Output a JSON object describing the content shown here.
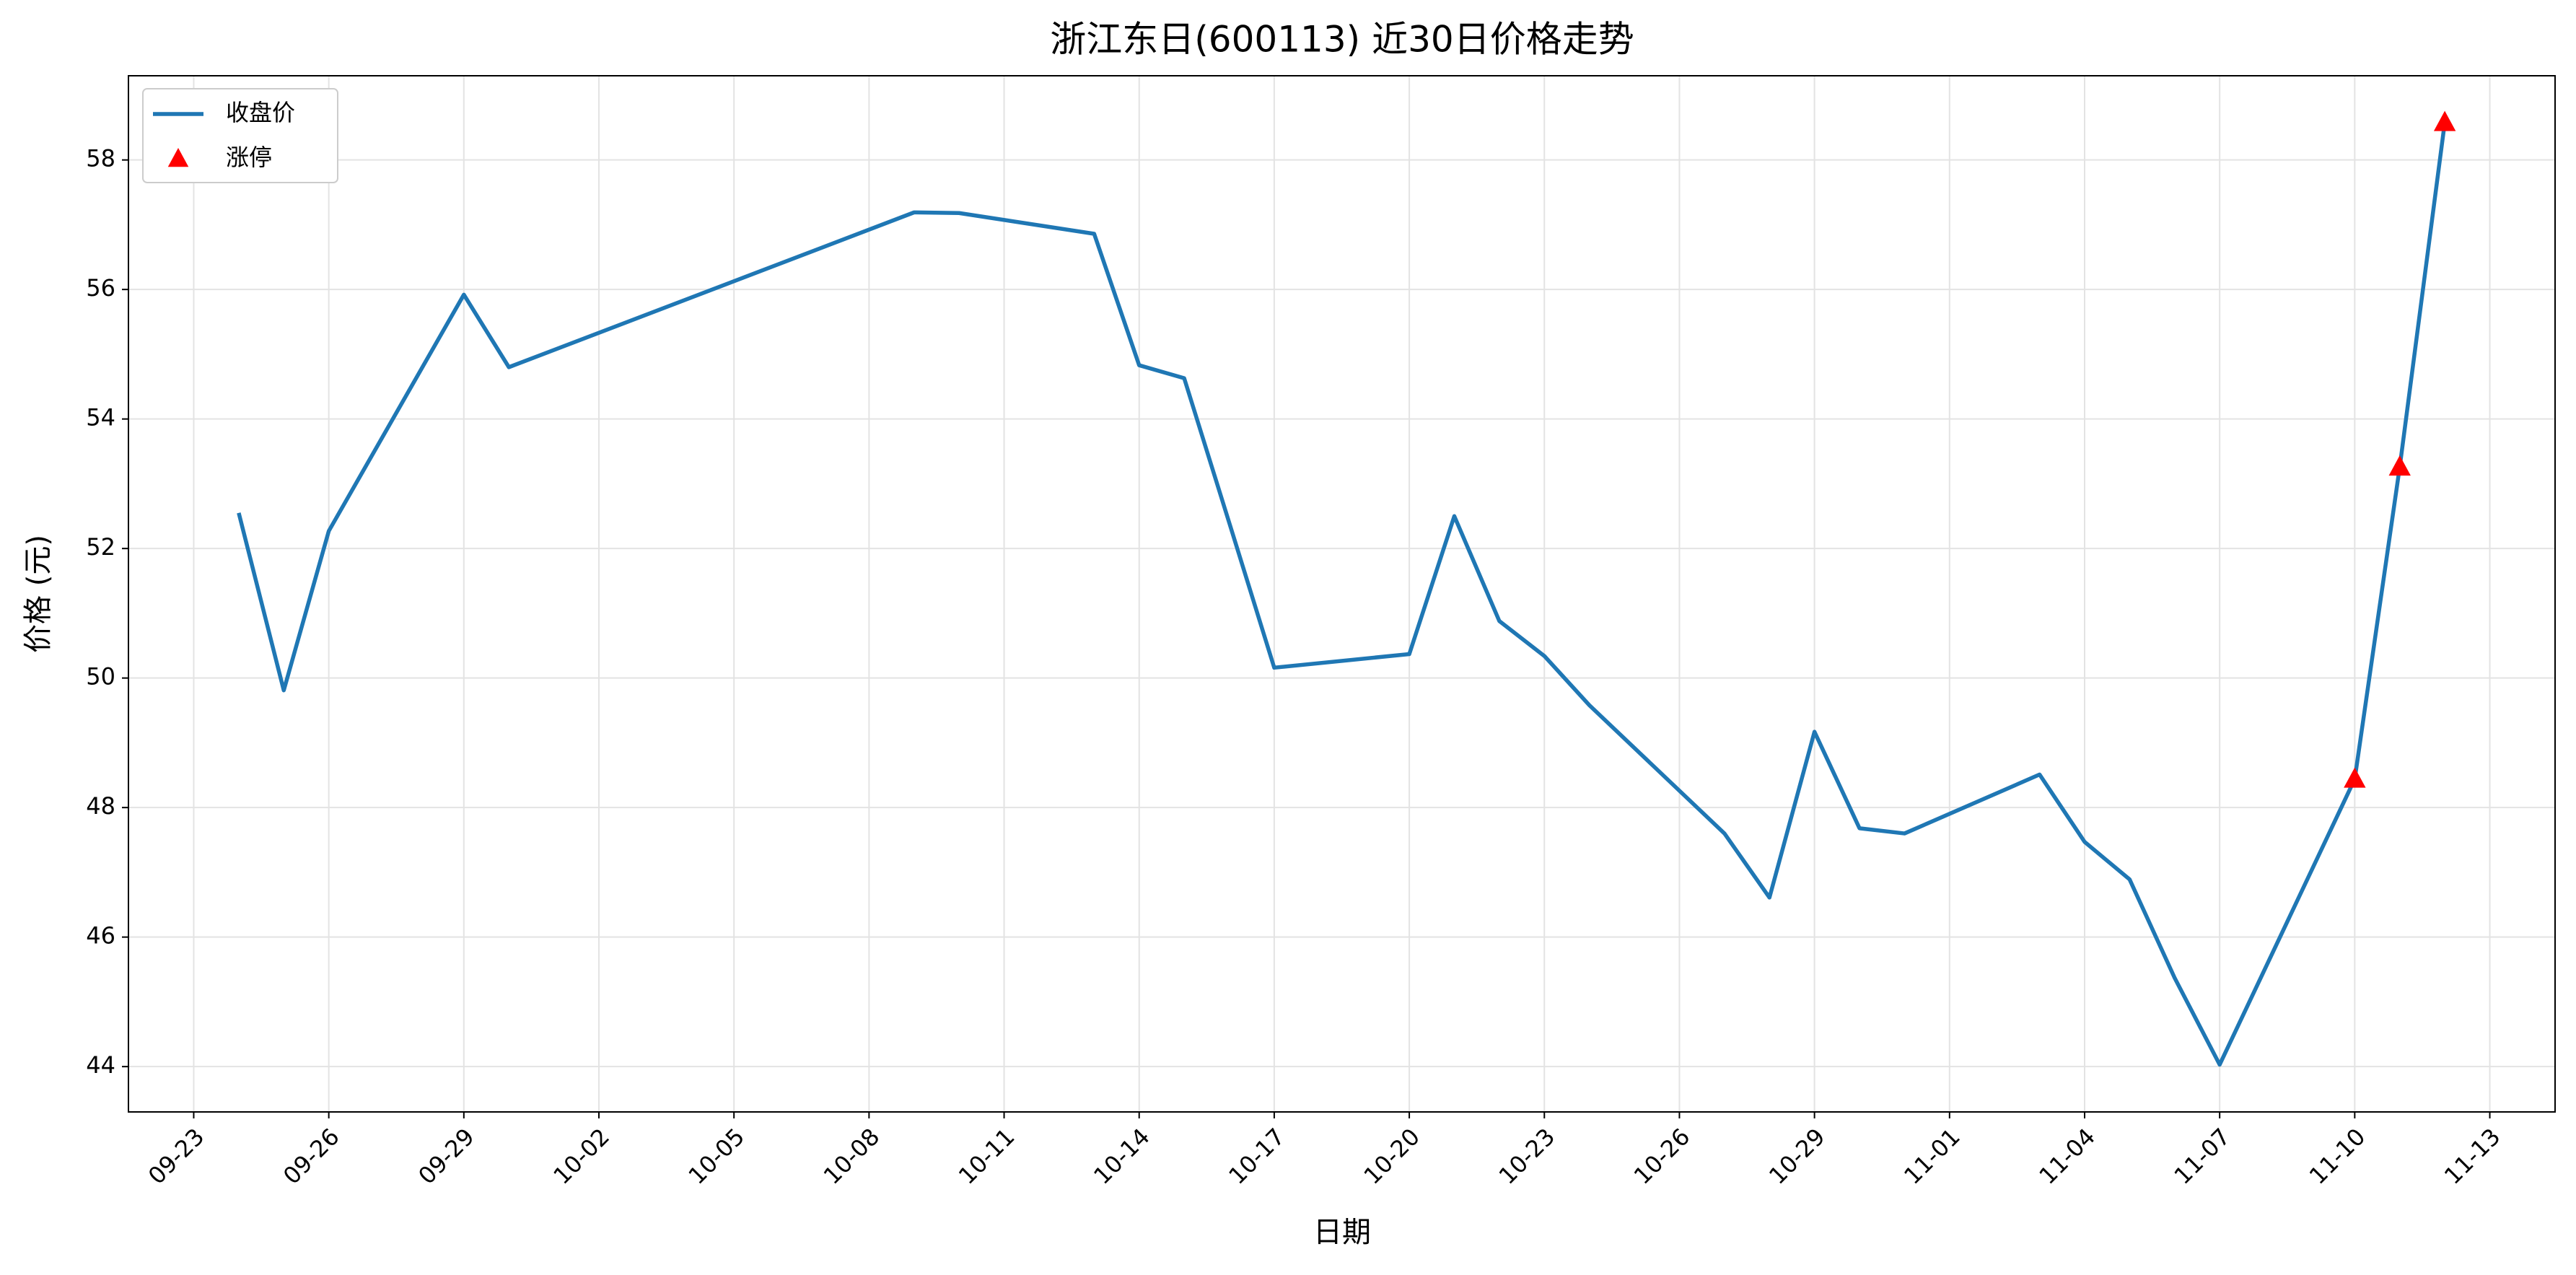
{
  "chart_data": {
    "type": "line",
    "title": "浙江东日(600113) 近30日价格走势",
    "x_label": "日期",
    "y_label": "价格 (元)",
    "x": [
      "09-24",
      "09-25",
      "09-26",
      "09-29",
      "09-30",
      "10-09",
      "10-10",
      "10-13",
      "10-14",
      "10-15",
      "10-16",
      "10-17",
      "10-20",
      "10-21",
      "10-22",
      "10-23",
      "10-24",
      "10-27",
      "10-28",
      "10-29",
      "10-30",
      "10-31",
      "11-03",
      "11-04",
      "11-05",
      "11-06",
      "11-07",
      "11-10",
      "11-11",
      "11-12"
    ],
    "series": [
      {
        "name": "收盘价",
        "color": "#1f77b4",
        "type": "line",
        "values": [
          52.55,
          49.81,
          52.27,
          55.92,
          54.8,
          57.19,
          57.18,
          56.86,
          54.83,
          54.63,
          52.4,
          50.16,
          50.37,
          52.5,
          50.88,
          50.34,
          49.58,
          47.6,
          46.61,
          49.17,
          47.68,
          47.6,
          48.51,
          47.47,
          46.89,
          45.37,
          44.03,
          48.44,
          53.26,
          58.58
        ]
      },
      {
        "name": "涨停",
        "color": "#ff0000",
        "type": "scatter",
        "values": [
          null,
          null,
          null,
          null,
          null,
          null,
          null,
          null,
          null,
          null,
          null,
          null,
          null,
          null,
          null,
          null,
          null,
          null,
          null,
          null,
          null,
          null,
          null,
          null,
          null,
          null,
          null,
          48.44,
          53.26,
          58.58
        ]
      }
    ],
    "xticks": [
      "09-23",
      "09-26",
      "09-29",
      "10-02",
      "10-05",
      "10-08",
      "10-11",
      "10-14",
      "10-17",
      "10-20",
      "10-23",
      "10-26",
      "10-29",
      "11-01",
      "11-04",
      "11-07",
      "11-10",
      "11-13"
    ],
    "ylim": [
      43.3,
      59.3
    ],
    "yticks": [
      44,
      46,
      48,
      50,
      52,
      54,
      56,
      58
    ],
    "grid": true,
    "legend": "upper-left"
  }
}
